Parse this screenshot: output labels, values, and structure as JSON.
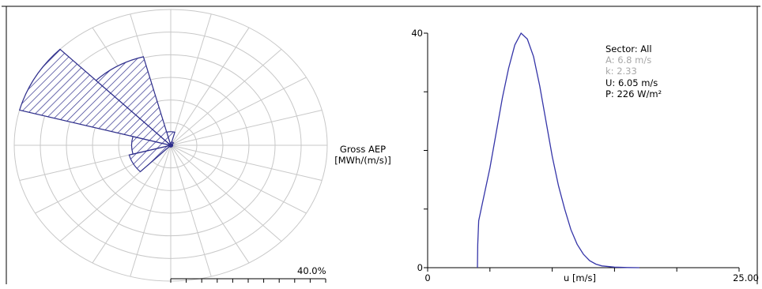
{
  "colors": {
    "rose_fill": "#2e2e8c",
    "curve": "#3535a8",
    "grid": "#c8c8c8",
    "muted_text": "#a8a8a8",
    "text": "#000000"
  },
  "chart_data": [
    {
      "type": "rose",
      "sectors": 12,
      "sector_width_deg": 30,
      "scale_label": "40.0%",
      "scale_max_percent": 40,
      "frequency_percent": [
        4,
        1,
        0.5,
        0.5,
        0.5,
        0.5,
        0.5,
        0.5,
        11,
        10,
        40,
        27
      ],
      "grid": true,
      "legend": "none"
    },
    {
      "type": "line",
      "xlabel": "u [m/s]",
      "ylabel_lines": [
        "Gross AEP",
        "[MWh/(m/s)]"
      ],
      "xlim": [
        0,
        25
      ],
      "ylim": [
        0,
        40
      ],
      "xticks": [
        "0",
        "25.00"
      ],
      "yticks": [
        "0",
        "40"
      ],
      "x": [
        4.0,
        4.02,
        4.1,
        4.4,
        5.0,
        5.5,
        6.0,
        6.5,
        7.0,
        7.5,
        8.0,
        8.5,
        9.0,
        9.5,
        10.0,
        10.5,
        11.0,
        11.5,
        12.0,
        12.5,
        13.0,
        13.5,
        14.0,
        15.0,
        16.0,
        17.0
      ],
      "y": [
        0,
        4,
        8,
        11,
        17,
        23,
        29,
        34,
        38,
        40,
        39,
        36,
        31,
        25,
        19,
        14,
        10,
        6.5,
        4,
        2.3,
        1.2,
        0.6,
        0.3,
        0.1,
        0.03,
        0
      ],
      "grid": false,
      "annotations": {
        "sector": "Sector: All",
        "a": "A: 6.8 m/s",
        "k": "k: 2.33",
        "u": "U: 6.05 m/s",
        "p": "P: 226 W/m²"
      }
    }
  ]
}
